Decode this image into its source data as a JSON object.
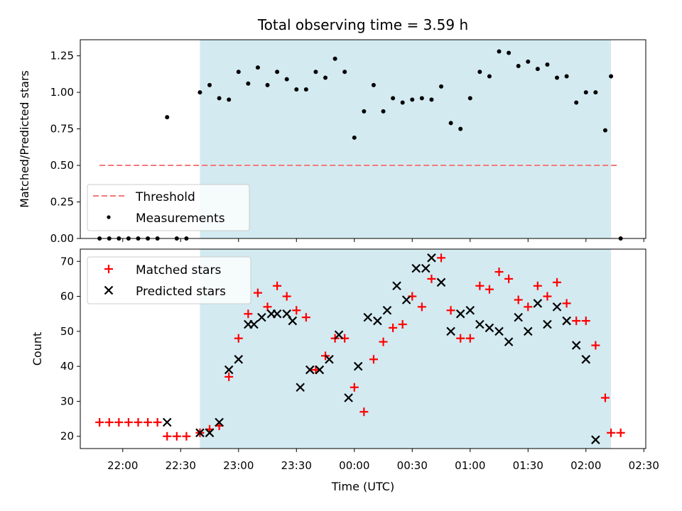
{
  "chart_data": [
    {
      "type": "scatter",
      "title": "Total observing time = 3.59 h",
      "xlabel": "",
      "ylabel": "Matched/Predicted stars",
      "xlim": [
        "21:38",
        "02:31"
      ],
      "ylim": [
        0,
        1.36
      ],
      "yticks": [
        "0.00",
        "0.25",
        "0.50",
        "0.75",
        "1.00",
        "1.25"
      ],
      "shaded_interval": [
        "22:40",
        "02:13"
      ],
      "shade_color": "#d3eaf1",
      "threshold": {
        "name": "Threshold",
        "value": 0.5,
        "x_range": [
          "21:48",
          "02:16"
        ],
        "color": "#f27a7a"
      },
      "series": [
        {
          "name": "Measurements",
          "color": "#000000",
          "x": [
            "21:48",
            "21:53",
            "21:58",
            "22:03",
            "22:08",
            "22:13",
            "22:18",
            "22:23",
            "22:28",
            "22:33",
            "22:40",
            "22:45",
            "22:50",
            "22:55",
            "23:00",
            "23:05",
            "23:10",
            "23:15",
            "23:20",
            "23:25",
            "23:30",
            "23:35",
            "23:40",
            "23:45",
            "23:50",
            "23:55",
            "00:00",
            "00:05",
            "00:10",
            "00:15",
            "00:20",
            "00:25",
            "00:30",
            "00:35",
            "00:40",
            "00:45",
            "00:50",
            "00:55",
            "01:00",
            "01:05",
            "01:10",
            "01:15",
            "01:20",
            "01:25",
            "01:30",
            "01:35",
            "01:40",
            "01:45",
            "01:50",
            "01:55",
            "02:00",
            "02:05",
            "02:10",
            "02:13",
            "02:18"
          ],
          "values": [
            0.0,
            0.0,
            0.0,
            0.0,
            0.0,
            0.0,
            0.0,
            0.83,
            0.0,
            0.0,
            1.0,
            1.05,
            0.96,
            0.95,
            1.14,
            1.06,
            1.17,
            1.05,
            1.14,
            1.09,
            1.02,
            1.02,
            1.14,
            1.1,
            1.23,
            1.14,
            0.69,
            0.87,
            1.05,
            0.87,
            0.96,
            0.93,
            0.95,
            0.96,
            0.95,
            1.04,
            0.79,
            0.75,
            0.96,
            1.14,
            1.11,
            1.28,
            1.27,
            1.18,
            1.21,
            1.16,
            1.19,
            1.1,
            1.11,
            0.93,
            1.0,
            1.0,
            0.74,
            1.11,
            0.0
          ]
        }
      ],
      "legend_position": "lower-left"
    },
    {
      "type": "scatter",
      "title": "",
      "xlabel": "Time (UTC)",
      "ylabel": "Count",
      "xlim": [
        "21:38",
        "02:31"
      ],
      "ylim": [
        16.5,
        73.5
      ],
      "xticks": [
        "22:00",
        "22:30",
        "23:00",
        "23:30",
        "00:00",
        "00:30",
        "01:00",
        "01:30",
        "02:00",
        "02:30"
      ],
      "yticks": [
        "20",
        "30",
        "40",
        "50",
        "60",
        "70"
      ],
      "shaded_interval": [
        "22:40",
        "02:13"
      ],
      "shade_color": "#d3eaf1",
      "series": [
        {
          "name": "Matched stars",
          "marker": "plus",
          "color": "#ff0000",
          "x": [
            "21:48",
            "21:53",
            "21:58",
            "22:03",
            "22:08",
            "22:13",
            "22:18",
            "22:23",
            "22:28",
            "22:33",
            "22:40",
            "22:45",
            "22:50",
            "22:55",
            "23:00",
            "23:05",
            "23:10",
            "23:15",
            "23:20",
            "23:25",
            "23:30",
            "23:35",
            "23:40",
            "23:45",
            "23:50",
            "23:55",
            "00:00",
            "00:05",
            "00:10",
            "00:15",
            "00:20",
            "00:25",
            "00:30",
            "00:35",
            "00:40",
            "00:45",
            "00:50",
            "00:55",
            "01:00",
            "01:05",
            "01:10",
            "01:15",
            "01:20",
            "01:25",
            "01:30",
            "01:35",
            "01:40",
            "01:45",
            "01:50",
            "01:55",
            "02:00",
            "02:05",
            "02:10",
            "02:13",
            "02:18"
          ],
          "values": [
            24,
            24,
            24,
            24,
            24,
            24,
            24,
            20,
            20,
            20,
            21,
            22,
            23,
            37,
            48,
            55,
            61,
            57,
            63,
            60,
            56,
            54,
            39,
            43,
            48,
            48,
            34,
            27,
            42,
            47,
            51,
            52,
            60,
            57,
            65,
            71,
            56,
            48,
            48,
            63,
            62,
            67,
            65,
            59,
            57,
            63,
            60,
            64,
            58,
            53,
            53,
            46,
            31,
            21,
            21
          ]
        },
        {
          "name": "Predicted stars",
          "marker": "x",
          "color": "#000000",
          "x": [
            "22:23",
            "22:40",
            "22:45",
            "22:50",
            "22:55",
            "23:00",
            "23:05",
            "23:08",
            "23:12",
            "23:17",
            "23:20",
            "23:25",
            "23:28",
            "23:32",
            "23:37",
            "23:42",
            "23:47",
            "23:52",
            "23:57",
            "00:02",
            "00:07",
            "00:12",
            "00:17",
            "00:22",
            "00:27",
            "00:32",
            "00:37",
            "00:40",
            "00:45",
            "00:50",
            "00:55",
            "01:00",
            "01:05",
            "01:10",
            "01:15",
            "01:20",
            "01:25",
            "01:30",
            "01:35",
            "01:40",
            "01:45",
            "01:50",
            "01:55",
            "02:00",
            "02:05",
            "02:10",
            "02:13"
          ],
          "values": [
            24,
            21,
            21,
            24,
            39,
            42,
            52,
            52,
            54,
            55,
            55,
            55,
            53,
            34,
            39,
            39,
            42,
            49,
            31,
            40,
            54,
            53,
            56,
            63,
            59,
            68,
            68,
            71,
            64,
            50,
            55,
            56,
            52,
            51,
            50,
            47,
            54,
            50,
            58,
            52,
            57,
            53,
            46,
            42,
            19,
            null,
            null
          ]
        }
      ],
      "legend_position": "upper-left"
    }
  ]
}
